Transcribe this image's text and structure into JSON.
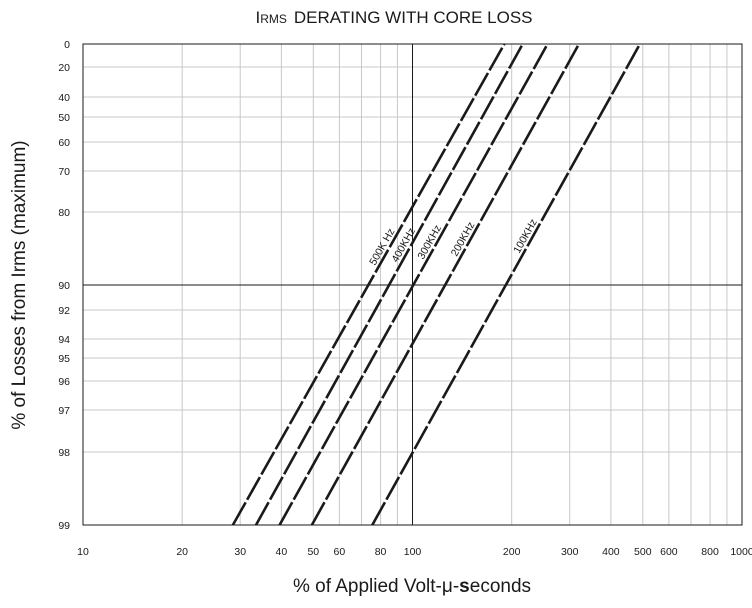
{
  "chart_data": {
    "type": "line",
    "title_prefix": "I",
    "title_sub": "RMS",
    "title_rest": "DERATING WITH CORE LOSS",
    "xlabel_pre": "% of Applied Volt-μ-",
    "xlabel_bold": "s",
    "xlabel_post": "econds",
    "ylabel": "% of Losses from Irms (maximum)",
    "x_scale": "log",
    "xlim": [
      10,
      1000
    ],
    "x_ticks": [
      10,
      20,
      30,
      40,
      50,
      60,
      80,
      100,
      200,
      300,
      400,
      500,
      600,
      800,
      1000
    ],
    "x_tick_labels": [
      "10",
      "20",
      "30",
      "40",
      "50",
      "60",
      "80",
      "100",
      "200",
      "300",
      "400",
      "500",
      "600",
      "800",
      "1000"
    ],
    "ylim": [
      0,
      99
    ],
    "y_ticks": [
      0,
      20,
      40,
      50,
      60,
      70,
      80,
      90,
      92,
      94,
      95,
      96,
      97,
      98,
      99
    ],
    "y_tick_labels": [
      "0",
      "20",
      "40",
      "50",
      "60",
      "70",
      "80",
      "90",
      "92",
      "94",
      "95",
      "96",
      "97",
      "98",
      "99"
    ],
    "grid": true,
    "reference_lines": {
      "x": 100,
      "y": 90
    },
    "series": [
      {
        "name": "500K Hz",
        "points": [
          [
            28.5,
            99
          ],
          [
            190,
            0
          ]
        ]
      },
      {
        "name": "400KHz",
        "points": [
          [
            33.5,
            99
          ],
          [
            216,
            0
          ]
        ]
      },
      {
        "name": "300KHz",
        "points": [
          [
            39.5,
            99
          ],
          [
            257,
            0
          ]
        ]
      },
      {
        "name": "200KHz",
        "points": [
          [
            49.5,
            99
          ],
          [
            320,
            0
          ]
        ]
      },
      {
        "name": "100KHz",
        "points": [
          [
            75.5,
            99
          ],
          [
            490,
            0
          ]
        ]
      }
    ]
  }
}
